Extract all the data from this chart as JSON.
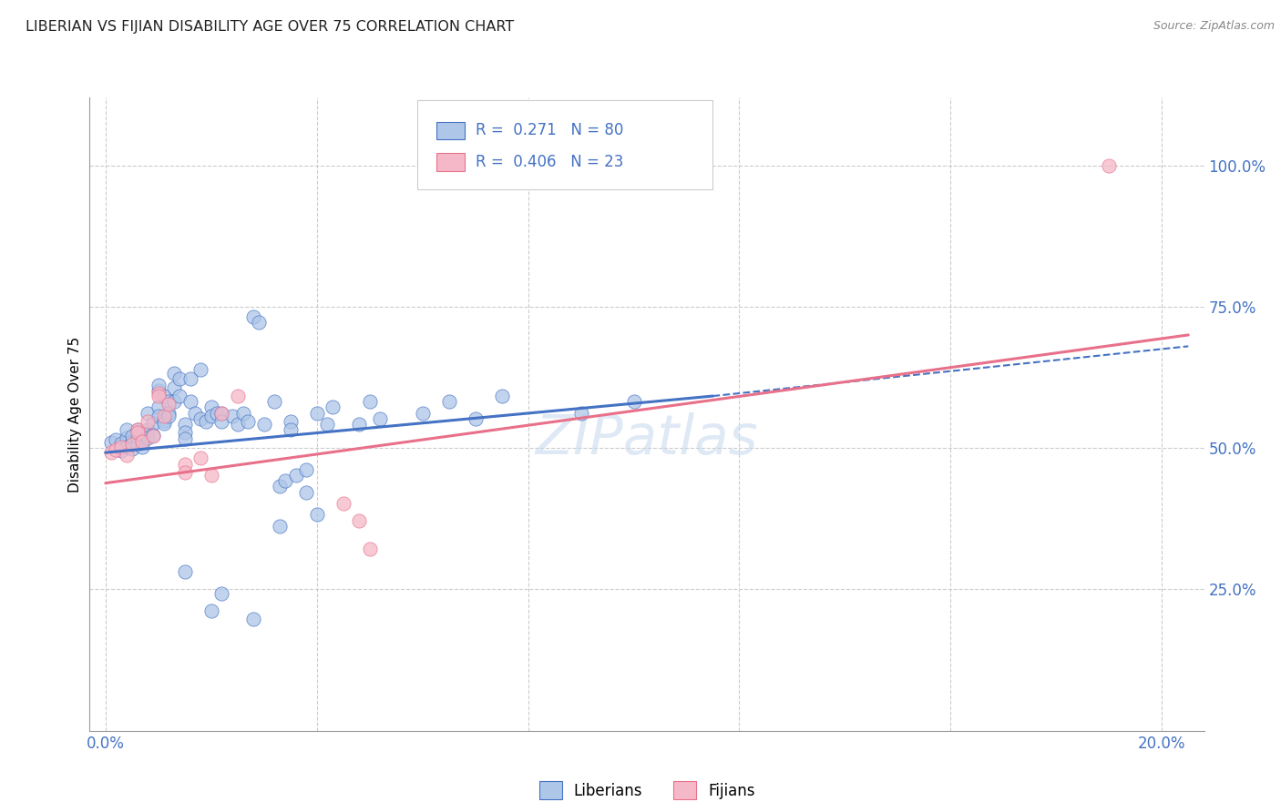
{
  "title": "LIBERIAN VS FIJIAN DISABILITY AGE OVER 75 CORRELATION CHART",
  "source": "Source: ZipAtlas.com",
  "ylabel": "Disability Age Over 75",
  "x_ticks": [
    0.0,
    0.04,
    0.08,
    0.12,
    0.16,
    0.2
  ],
  "x_tick_labels": [
    "0.0%",
    "",
    "",
    "",
    "",
    "20.0%"
  ],
  "y_ticks_right": [
    0.25,
    0.5,
    0.75,
    1.0
  ],
  "y_tick_labels_right": [
    "25.0%",
    "50.0%",
    "75.0%",
    "100.0%"
  ],
  "xlim": [
    -0.003,
    0.208
  ],
  "ylim": [
    0.0,
    1.12
  ],
  "liberian_color": "#aec6e8",
  "fijian_color": "#f5b8c8",
  "liberian_line_color": "#4472c4",
  "fijian_line_color": "#e8708a",
  "watermark": "ZIPatlas",
  "liberian_scatter": [
    [
      0.001,
      0.51
    ],
    [
      0.002,
      0.515
    ],
    [
      0.003,
      0.495
    ],
    [
      0.003,
      0.508
    ],
    [
      0.004,
      0.518
    ],
    [
      0.004,
      0.502
    ],
    [
      0.004,
      0.532
    ],
    [
      0.005,
      0.512
    ],
    [
      0.005,
      0.498
    ],
    [
      0.005,
      0.522
    ],
    [
      0.006,
      0.518
    ],
    [
      0.006,
      0.533
    ],
    [
      0.006,
      0.507
    ],
    [
      0.007,
      0.528
    ],
    [
      0.007,
      0.513
    ],
    [
      0.007,
      0.502
    ],
    [
      0.008,
      0.562
    ],
    [
      0.008,
      0.533
    ],
    [
      0.008,
      0.518
    ],
    [
      0.009,
      0.543
    ],
    [
      0.009,
      0.523
    ],
    [
      0.01,
      0.602
    ],
    [
      0.01,
      0.612
    ],
    [
      0.01,
      0.572
    ],
    [
      0.01,
      0.557
    ],
    [
      0.011,
      0.592
    ],
    [
      0.011,
      0.548
    ],
    [
      0.011,
      0.543
    ],
    [
      0.012,
      0.582
    ],
    [
      0.012,
      0.562
    ],
    [
      0.012,
      0.557
    ],
    [
      0.013,
      0.632
    ],
    [
      0.013,
      0.607
    ],
    [
      0.013,
      0.582
    ],
    [
      0.014,
      0.622
    ],
    [
      0.014,
      0.592
    ],
    [
      0.015,
      0.542
    ],
    [
      0.015,
      0.527
    ],
    [
      0.015,
      0.517
    ],
    [
      0.016,
      0.622
    ],
    [
      0.016,
      0.582
    ],
    [
      0.017,
      0.562
    ],
    [
      0.018,
      0.638
    ],
    [
      0.018,
      0.552
    ],
    [
      0.019,
      0.547
    ],
    [
      0.02,
      0.572
    ],
    [
      0.02,
      0.557
    ],
    [
      0.021,
      0.562
    ],
    [
      0.022,
      0.562
    ],
    [
      0.022,
      0.547
    ],
    [
      0.024,
      0.557
    ],
    [
      0.025,
      0.542
    ],
    [
      0.026,
      0.562
    ],
    [
      0.027,
      0.547
    ],
    [
      0.028,
      0.732
    ],
    [
      0.029,
      0.722
    ],
    [
      0.03,
      0.542
    ],
    [
      0.032,
      0.582
    ],
    [
      0.033,
      0.432
    ],
    [
      0.034,
      0.442
    ],
    [
      0.035,
      0.547
    ],
    [
      0.035,
      0.532
    ],
    [
      0.036,
      0.452
    ],
    [
      0.038,
      0.462
    ],
    [
      0.04,
      0.562
    ],
    [
      0.042,
      0.542
    ],
    [
      0.043,
      0.572
    ],
    [
      0.048,
      0.542
    ],
    [
      0.05,
      0.582
    ],
    [
      0.052,
      0.552
    ],
    [
      0.06,
      0.562
    ],
    [
      0.065,
      0.582
    ],
    [
      0.07,
      0.552
    ],
    [
      0.075,
      0.592
    ],
    [
      0.09,
      0.562
    ],
    [
      0.1,
      0.582
    ],
    [
      0.015,
      0.282
    ],
    [
      0.02,
      0.212
    ],
    [
      0.022,
      0.242
    ],
    [
      0.028,
      0.198
    ],
    [
      0.033,
      0.362
    ],
    [
      0.038,
      0.422
    ],
    [
      0.04,
      0.382
    ]
  ],
  "fijian_scatter": [
    [
      0.001,
      0.492
    ],
    [
      0.002,
      0.497
    ],
    [
      0.003,
      0.502
    ],
    [
      0.004,
      0.487
    ],
    [
      0.005,
      0.507
    ],
    [
      0.006,
      0.532
    ],
    [
      0.006,
      0.527
    ],
    [
      0.007,
      0.512
    ],
    [
      0.008,
      0.547
    ],
    [
      0.009,
      0.522
    ],
    [
      0.01,
      0.597
    ],
    [
      0.01,
      0.592
    ],
    [
      0.011,
      0.557
    ],
    [
      0.012,
      0.577
    ],
    [
      0.015,
      0.472
    ],
    [
      0.015,
      0.457
    ],
    [
      0.018,
      0.482
    ],
    [
      0.02,
      0.452
    ],
    [
      0.022,
      0.562
    ],
    [
      0.025,
      0.592
    ],
    [
      0.045,
      0.402
    ],
    [
      0.048,
      0.372
    ],
    [
      0.05,
      0.322
    ],
    [
      0.19,
      1.0
    ]
  ],
  "liberian_trendline_solid": [
    [
      0.0,
      0.492
    ],
    [
      0.115,
      0.592
    ]
  ],
  "liberian_trendline_dashed": [
    [
      0.115,
      0.592
    ],
    [
      0.205,
      0.68
    ]
  ],
  "fijian_trendline": [
    [
      0.0,
      0.438
    ],
    [
      0.205,
      0.7
    ]
  ]
}
